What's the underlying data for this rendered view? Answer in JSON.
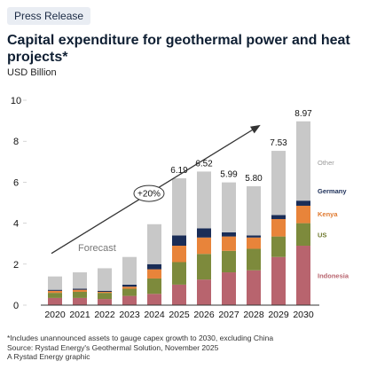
{
  "badge": "Press Release",
  "title": "Capital expenditure for geothermal power and heat projects*",
  "unit": "USD Billion",
  "forecast_label": "Forecast",
  "growth_label": "+20%",
  "footnotes": [
    "*Includes unannounced assets to gauge capex growth to 2030, excluding China",
    "Source: Rystad Energy's Geothermal Solution, November 2025",
    "A Rystad Energy graphic"
  ],
  "colors": {
    "Indonesia": "#b8646e",
    "US": "#7d8a3c",
    "Kenya": "#e8843a",
    "Germany": "#1a2d57",
    "Other": "#c8c8c8"
  },
  "chart_data": {
    "type": "bar",
    "stacked": true,
    "categories": [
      "2020",
      "2021",
      "2022",
      "2023",
      "2024",
      "2025",
      "2026",
      "2027",
      "2028",
      "2029",
      "2030"
    ],
    "series": [
      {
        "name": "Indonesia",
        "values": [
          0.35,
          0.35,
          0.3,
          0.45,
          0.55,
          1.0,
          1.25,
          1.6,
          1.7,
          2.35,
          2.9
        ]
      },
      {
        "name": "US",
        "values": [
          0.25,
          0.3,
          0.3,
          0.35,
          0.75,
          1.1,
          1.25,
          1.05,
          1.05,
          1.0,
          1.1
        ]
      },
      {
        "name": "Kenya",
        "values": [
          0.1,
          0.1,
          0.05,
          0.1,
          0.45,
          0.8,
          0.8,
          0.7,
          0.55,
          0.85,
          0.85
        ]
      },
      {
        "name": "Germany",
        "values": [
          0.05,
          0.05,
          0.05,
          0.1,
          0.25,
          0.5,
          0.45,
          0.2,
          0.1,
          0.2,
          0.25
        ]
      },
      {
        "name": "Other",
        "values": [
          0.65,
          0.8,
          1.1,
          1.35,
          1.95,
          2.79,
          2.77,
          2.44,
          2.4,
          3.13,
          3.87
        ]
      }
    ],
    "totals_labels": {
      "2025": "6.19",
      "2026": "6.52",
      "2027": "5.99",
      "2028": "5.80",
      "2029": "7.53",
      "2030": "8.97"
    },
    "yticks": [
      "0",
      "2",
      "4",
      "6",
      "8",
      "10"
    ],
    "ylim": [
      0,
      10
    ],
    "forecast_start": "2020",
    "growth_arrow": {
      "from": "2020",
      "to": "2030"
    },
    "legend_placement": "right of 2030 bar",
    "grid": false
  }
}
